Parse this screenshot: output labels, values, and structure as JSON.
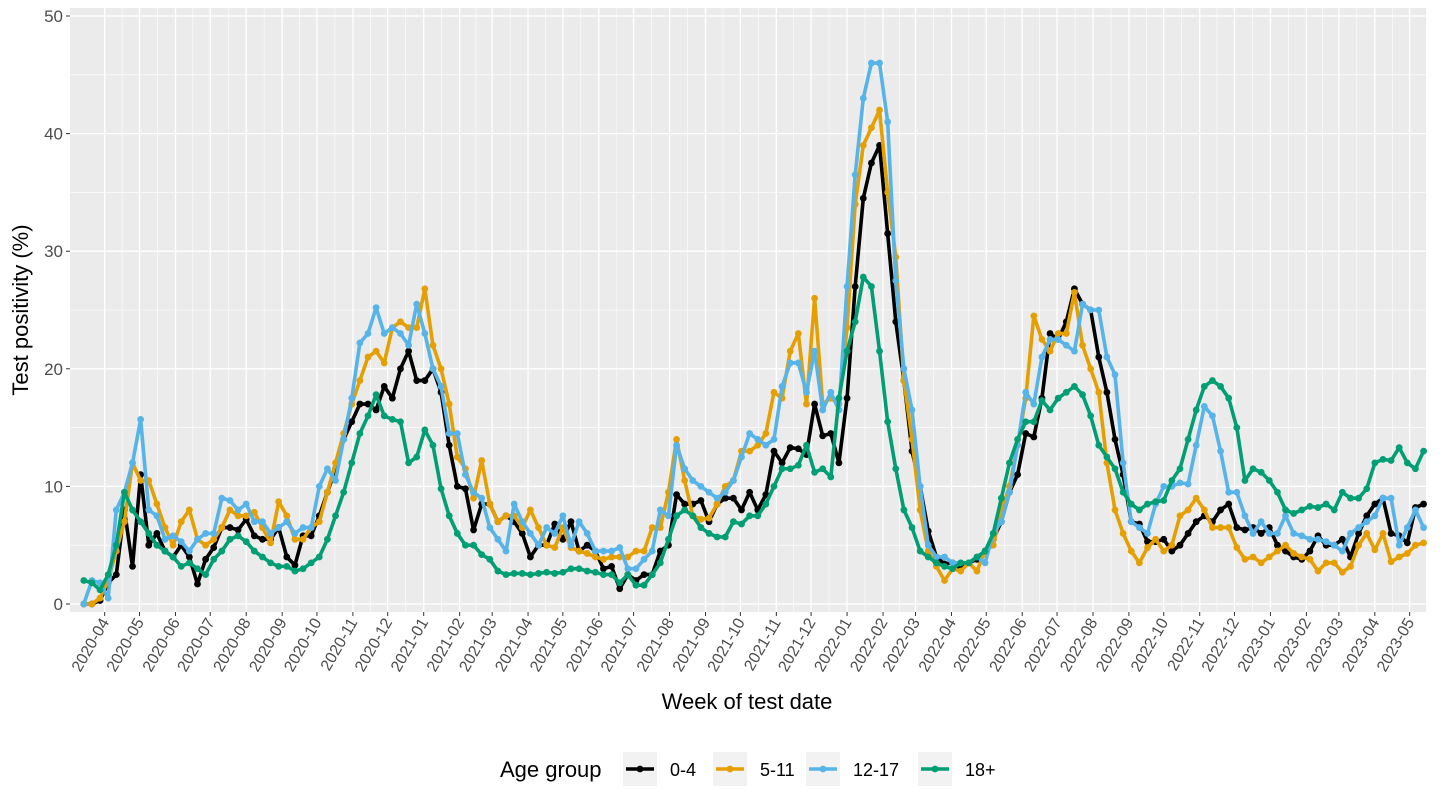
{
  "chart_data": {
    "type": "line",
    "x_label": "Week of test date",
    "y_label": "Test positivity (%)",
    "legend_title": "Age group",
    "legend": "bottom",
    "grid": true,
    "markers": true,
    "xlim": [
      -1.7,
      165.3
    ],
    "ylim": [
      -0.68,
      50.68
    ],
    "yticks": [
      0,
      10,
      20,
      30,
      40,
      50
    ],
    "xticks": [
      {
        "value": 2.57,
        "label": "2020-04"
      },
      {
        "value": 6.86,
        "label": "2020-05"
      },
      {
        "value": 11.29,
        "label": "2020-06"
      },
      {
        "value": 15.57,
        "label": "2020-07"
      },
      {
        "value": 20,
        "label": "2020-08"
      },
      {
        "value": 24.43,
        "label": "2020-09"
      },
      {
        "value": 28.71,
        "label": "2020-10"
      },
      {
        "value": 33.14,
        "label": "2020-11"
      },
      {
        "value": 37.43,
        "label": "2020-12"
      },
      {
        "value": 41.86,
        "label": "2021-01"
      },
      {
        "value": 46.29,
        "label": "2021-02"
      },
      {
        "value": 50.29,
        "label": "2021-03"
      },
      {
        "value": 54.71,
        "label": "2021-04"
      },
      {
        "value": 59,
        "label": "2021-05"
      },
      {
        "value": 63.43,
        "label": "2021-06"
      },
      {
        "value": 67.71,
        "label": "2021-07"
      },
      {
        "value": 72.14,
        "label": "2021-08"
      },
      {
        "value": 76.57,
        "label": "2021-09"
      },
      {
        "value": 80.86,
        "label": "2021-10"
      },
      {
        "value": 85.29,
        "label": "2021-11"
      },
      {
        "value": 89.57,
        "label": "2021-12"
      },
      {
        "value": 94,
        "label": "2022-01"
      },
      {
        "value": 98.43,
        "label": "2022-02"
      },
      {
        "value": 102.43,
        "label": "2022-03"
      },
      {
        "value": 106.86,
        "label": "2022-04"
      },
      {
        "value": 111.14,
        "label": "2022-05"
      },
      {
        "value": 115.57,
        "label": "2022-06"
      },
      {
        "value": 119.86,
        "label": "2022-07"
      },
      {
        "value": 124.29,
        "label": "2022-08"
      },
      {
        "value": 128.71,
        "label": "2022-09"
      },
      {
        "value": 133,
        "label": "2022-10"
      },
      {
        "value": 137.43,
        "label": "2022-11"
      },
      {
        "value": 141.71,
        "label": "2022-12"
      },
      {
        "value": 146.14,
        "label": "2023-01"
      },
      {
        "value": 150.57,
        "label": "2023-02"
      },
      {
        "value": 154.57,
        "label": "2023-03"
      },
      {
        "value": 159,
        "label": "2023-04"
      },
      {
        "value": 163.29,
        "label": "2023-05"
      }
    ],
    "x": [
      0,
      1,
      2,
      3,
      4,
      5,
      6,
      7,
      8,
      9,
      10,
      11,
      12,
      13,
      14,
      15,
      16,
      17,
      18,
      19,
      20,
      21,
      22,
      23,
      24,
      25,
      26,
      27,
      28,
      29,
      30,
      31,
      32,
      33,
      34,
      35,
      36,
      37,
      38,
      39,
      40,
      41,
      42,
      43,
      44,
      45,
      46,
      47,
      48,
      49,
      50,
      51,
      52,
      53,
      54,
      55,
      56,
      57,
      58,
      59,
      60,
      61,
      62,
      63,
      64,
      65,
      66,
      67,
      68,
      69,
      70,
      71,
      72,
      73,
      74,
      75,
      76,
      77,
      78,
      79,
      80,
      81,
      82,
      83,
      84,
      85,
      86,
      87,
      88,
      89,
      90,
      91,
      92,
      93,
      94,
      95,
      96,
      97,
      98,
      99,
      100,
      101,
      102,
      103,
      104,
      105,
      106,
      107,
      108,
      109,
      110,
      111,
      112,
      113,
      114,
      115,
      116,
      117,
      118,
      119,
      120,
      121,
      122,
      123,
      124,
      125,
      126,
      127,
      128,
      129,
      130,
      131,
      132,
      133,
      134,
      135,
      136,
      137,
      138,
      139,
      140,
      141,
      142,
      143,
      144,
      145,
      146,
      147,
      148,
      149,
      150,
      151,
      152,
      153,
      154,
      155,
      156,
      157,
      158,
      159,
      160,
      161,
      162,
      163,
      164,
      165
    ],
    "series": [
      {
        "name": "0-4",
        "color": "#000000",
        "values": [
          0,
          0,
          0.3,
          1.8,
          2.5,
          8,
          3.2,
          11,
          5,
          6,
          4.5,
          4,
          5,
          4,
          1.7,
          3.8,
          4.8,
          6.5,
          6.5,
          6.3,
          7.2,
          5.8,
          5.5,
          5.5,
          6.5,
          4,
          3.3,
          5.8,
          5.8,
          7.5,
          9.5,
          11.5,
          14,
          15.5,
          17,
          17,
          16.5,
          18.5,
          17.5,
          20,
          21.5,
          19,
          19,
          20,
          18,
          13.5,
          10,
          9.8,
          6.3,
          8.5,
          8.5,
          7,
          7.5,
          7,
          6,
          4,
          5,
          5,
          6.8,
          5.5,
          7,
          4.5,
          5,
          4.5,
          3,
          3.2,
          1.3,
          2.5,
          2,
          2.5,
          2.5,
          4.5,
          5,
          9.3,
          8.5,
          8.5,
          8.8,
          7,
          8.5,
          9,
          9,
          8,
          9.5,
          8,
          9.3,
          13,
          12,
          13.3,
          13.2,
          12.7,
          17,
          14.3,
          14.5,
          12,
          17.5,
          27,
          34.5,
          37.5,
          39,
          31.5,
          24,
          19,
          13,
          10,
          6.2,
          4,
          3.4,
          3.5,
          3,
          3.5,
          3.8,
          4.5,
          5.5,
          7,
          9.5,
          11,
          14.5,
          14.2,
          17.5,
          23,
          22.5,
          24,
          26.8,
          25.5,
          25,
          21,
          18,
          14,
          11,
          7,
          6.8,
          5.3,
          5.3,
          5.5,
          4.5,
          5,
          6,
          7,
          7.5,
          7,
          8,
          8.5,
          6.5,
          6.3,
          6.5,
          6,
          6.5,
          5,
          4.5,
          4,
          3.8,
          4.5,
          5.8,
          5,
          5,
          5.5,
          4,
          6,
          7.5,
          8.5,
          9,
          6,
          5.8,
          5.2,
          8.2,
          8.5
        ]
      },
      {
        "name": "5-11",
        "color": "#E69F00",
        "values": [
          0,
          0,
          0.5,
          2,
          4.5,
          7,
          12,
          10.5,
          10.5,
          8.5,
          6.5,
          5,
          7,
          8,
          5.5,
          5,
          5.5,
          6.5,
          8,
          7.5,
          7.5,
          7.8,
          6.5,
          5.2,
          8.7,
          7.5,
          5.5,
          5.5,
          6.5,
          7,
          9.5,
          12,
          14.5,
          17,
          19,
          21,
          21.5,
          20.5,
          23.5,
          24,
          23.5,
          23.5,
          26.8,
          22,
          20,
          17,
          12.5,
          11.5,
          9,
          12.2,
          8.5,
          7,
          7.5,
          7.5,
          6.5,
          8,
          6.5,
          5,
          4.8,
          6.5,
          4.8,
          4.5,
          4.3,
          4,
          3.8,
          4,
          4,
          4,
          4.5,
          4.5,
          6.5,
          6.5,
          9.5,
          14,
          10.5,
          7.5,
          7.2,
          7.3,
          8.5,
          10,
          10.5,
          13,
          13,
          13.5,
          14.5,
          18,
          17.5,
          21.5,
          23,
          17,
          26,
          17,
          17.5,
          17,
          23.5,
          34,
          39,
          40.5,
          42,
          35,
          29.5,
          19,
          14,
          8,
          4.5,
          3.2,
          2,
          3,
          2.8,
          3.5,
          2.8,
          4.5,
          5,
          8,
          10,
          13.5,
          17.5,
          24.5,
          22.5,
          21.5,
          23,
          23,
          26.5,
          22,
          20,
          18,
          12,
          8,
          6,
          4.5,
          3.5,
          4.8,
          5.5,
          4.5,
          5,
          7.5,
          8,
          9,
          8,
          6.5,
          6.5,
          6.5,
          4.8,
          3.8,
          4,
          3.5,
          4,
          4.5,
          5,
          4.3,
          4,
          3.8,
          2.8,
          3.5,
          3.5,
          2.7,
          3.2,
          5,
          6,
          4.6,
          6,
          3.6,
          4,
          4.3,
          5,
          5.2
        ]
      },
      {
        "name": "12-17",
        "color": "#56B4E9",
        "values": [
          0,
          2,
          1.8,
          0.5,
          8,
          9.5,
          12,
          15.7,
          8,
          7.5,
          5.5,
          5.8,
          5.3,
          4.5,
          5.5,
          6,
          6,
          9,
          8.8,
          8,
          8.5,
          7,
          7,
          6,
          6.5,
          7,
          6,
          6.5,
          6.5,
          10,
          11.5,
          10.5,
          14,
          17.5,
          22.2,
          23,
          25.2,
          23,
          23.5,
          23,
          22,
          25.5,
          23,
          20,
          18.5,
          14.5,
          14.5,
          11,
          9.5,
          9,
          6.5,
          5.5,
          4.5,
          8.5,
          7,
          6,
          5,
          6.5,
          6,
          7.5,
          5,
          7,
          6,
          4.5,
          4.5,
          4.5,
          4.8,
          3,
          3,
          3.8,
          4.5,
          8,
          7.5,
          13.5,
          11.5,
          10.5,
          10,
          9.5,
          9,
          9.5,
          10.5,
          12.5,
          14.5,
          14,
          13.5,
          14,
          18.5,
          20.5,
          20.5,
          18,
          21.5,
          16.5,
          18,
          16.5,
          27,
          36.5,
          43,
          46,
          46,
          41,
          27.5,
          20,
          16.5,
          10,
          5,
          4,
          4,
          3.5,
          3.5,
          3.5,
          4,
          3.5,
          6,
          7,
          9.5,
          13.5,
          18,
          17,
          21,
          22.5,
          22.5,
          22,
          21.5,
          25.5,
          25,
          25,
          21,
          19.5,
          12,
          7,
          6.5,
          6,
          8.5,
          10,
          10,
          10.3,
          10.2,
          13.5,
          16.8,
          16,
          13,
          9.5,
          9.5,
          7.5,
          6,
          7,
          6,
          6,
          7.5,
          6,
          5.8,
          5.5,
          5.5,
          5.3,
          5,
          4.5,
          6,
          6.5,
          7,
          7.5,
          9,
          9,
          5,
          6.5,
          8,
          6.5
        ]
      },
      {
        "name": "18+",
        "color": "#009E73",
        "values": [
          2,
          1.8,
          1.2,
          2.5,
          5,
          9.5,
          8,
          7,
          6,
          5,
          4.5,
          4,
          3.2,
          3.5,
          3,
          2.5,
          3.8,
          4.5,
          5.5,
          5.8,
          5.3,
          4.5,
          4,
          3.5,
          3.2,
          3.2,
          2.8,
          3,
          3.5,
          4,
          5.5,
          7.5,
          9.5,
          12,
          14.5,
          16,
          17.8,
          16,
          15.7,
          15.5,
          12,
          12.5,
          14.8,
          13.5,
          9.8,
          7.5,
          6,
          5,
          5,
          4.2,
          3.8,
          2.8,
          2.5,
          2.6,
          2.6,
          2.5,
          2.6,
          2.7,
          2.6,
          2.7,
          3,
          3,
          2.8,
          2.7,
          2.5,
          2.5,
          1.8,
          2.5,
          1.6,
          1.6,
          2.5,
          3.5,
          5.5,
          7.5,
          8,
          7.5,
          6.5,
          6,
          5.7,
          5.7,
          7,
          6.8,
          7.5,
          7.5,
          8.5,
          10,
          11.5,
          11.5,
          11.8,
          13.5,
          11.2,
          11.5,
          10.8,
          17.5,
          21.5,
          24,
          27.8,
          27,
          21.5,
          15.5,
          11.5,
          8,
          6.5,
          4.5,
          4,
          3.5,
          3.2,
          3,
          3.5,
          3.5,
          4,
          4.5,
          6,
          9,
          12,
          14,
          15.5,
          15.5,
          17.3,
          16.5,
          17.5,
          18,
          18.5,
          17.8,
          16,
          13.5,
          12.5,
          11.5,
          9.5,
          8.5,
          8,
          8.5,
          8.7,
          8.8,
          10.5,
          11.5,
          14,
          16.5,
          18.5,
          19,
          18.5,
          17.5,
          15,
          10.5,
          11.5,
          11.2,
          10.5,
          9.5,
          8,
          7.7,
          8,
          8.3,
          8.2,
          8.5,
          8,
          9.5,
          9,
          9,
          9.8,
          12,
          12.3,
          12.2,
          13.3,
          12,
          11.5,
          13
        ]
      }
    ]
  }
}
